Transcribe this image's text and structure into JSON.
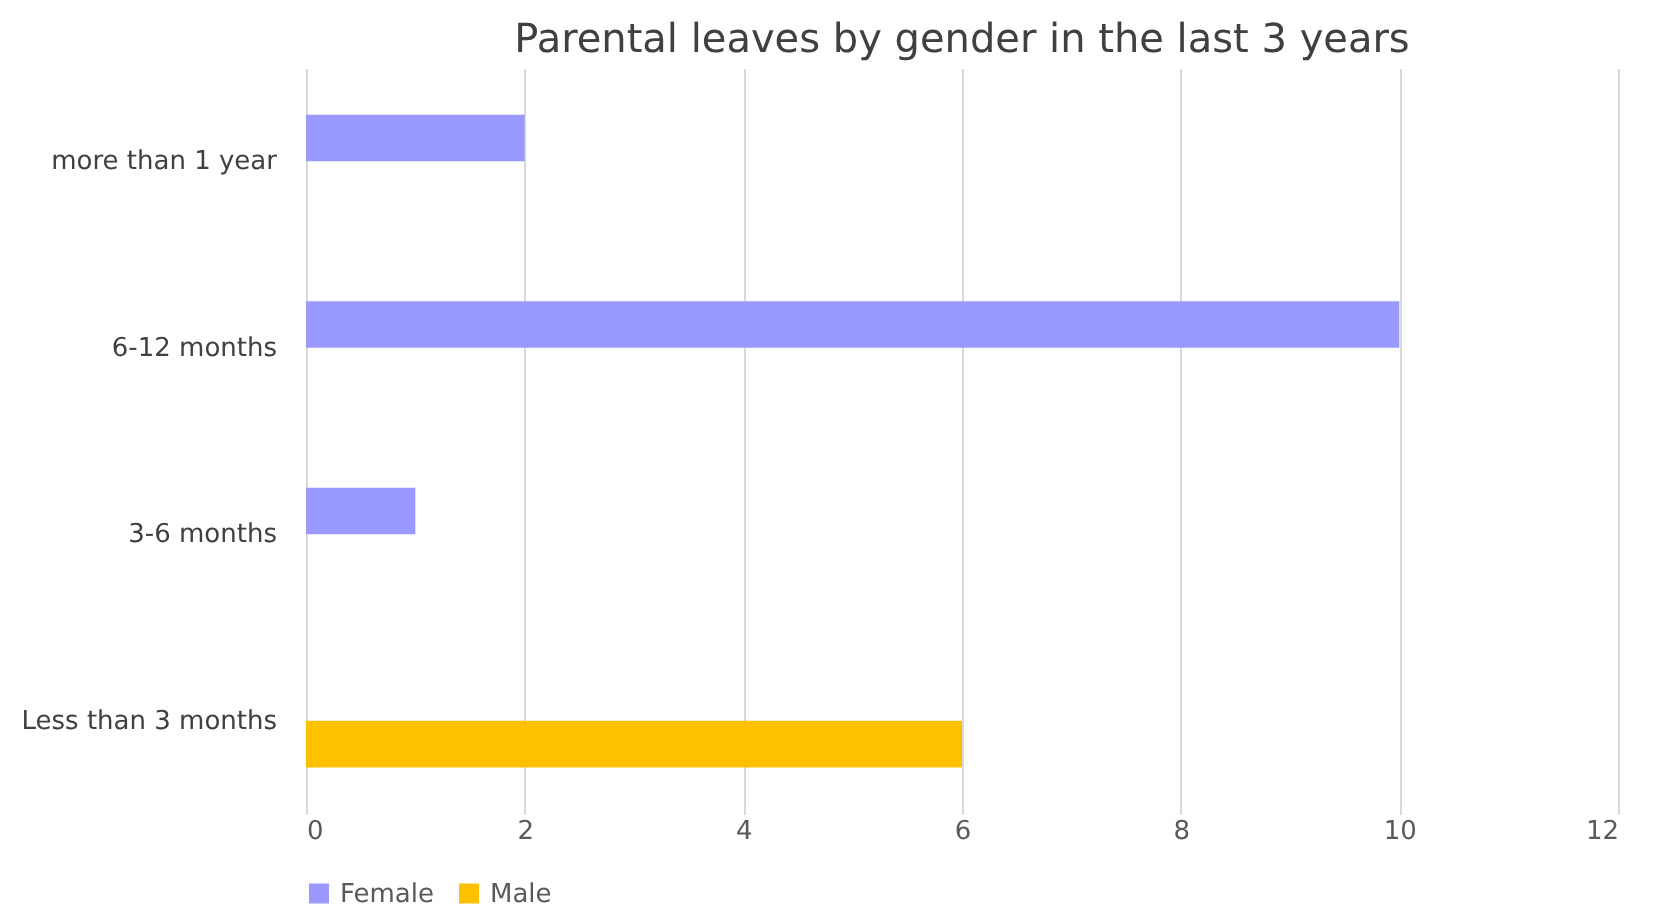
{
  "chart_data": {
    "type": "bar",
    "orientation": "horizontal",
    "title": "Parental leaves by gender in the last 3 years",
    "categories": [
      "more than 1 year",
      "6-12 months",
      "3-6 months",
      "Less than 3 months"
    ],
    "series": [
      {
        "name": "Female",
        "color": "#9999ff",
        "values": [
          2,
          10,
          1,
          null
        ]
      },
      {
        "name": "Male",
        "color": "#ffc000",
        "values": [
          null,
          null,
          null,
          6
        ]
      }
    ],
    "xlim": [
      0,
      12
    ],
    "xticks": [
      0,
      2,
      4,
      6,
      8,
      10,
      12
    ],
    "grid": "x",
    "legend": "bottom left"
  }
}
